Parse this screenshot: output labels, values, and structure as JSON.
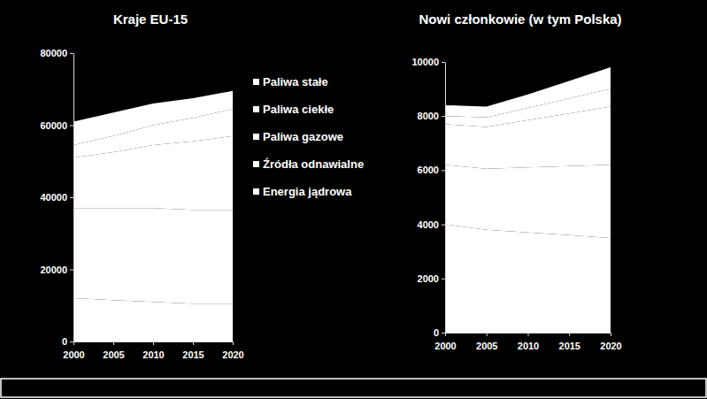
{
  "chart_data": [
    {
      "type": "area",
      "title": "Kraje EU-15",
      "stacked": true,
      "legend": "right",
      "x": [
        2000,
        2005,
        2010,
        2015,
        2020
      ],
      "xlim": [
        2000,
        2020
      ],
      "xticks": [
        2000,
        2005,
        2010,
        2015,
        2020
      ],
      "ylim": [
        0,
        80000
      ],
      "yticks": [
        0,
        20000,
        40000,
        60000,
        80000
      ],
      "series": [
        {
          "name": "Paliwa stałe",
          "color": "#ffffff",
          "values": [
            12000,
            11500,
            11000,
            10500,
            10500
          ]
        },
        {
          "name": "Paliwa ciekłe",
          "color": "#ffffff",
          "values": [
            25000,
            25500,
            26000,
            26000,
            26000
          ]
        },
        {
          "name": "Paliwa gazowe",
          "color": "#ffffff",
          "values": [
            14000,
            15500,
            17500,
            19000,
            20500
          ]
        },
        {
          "name": "Źródła odnawialne",
          "color": "#ffffff",
          "values": [
            3500,
            4500,
            5500,
            6500,
            7500
          ]
        },
        {
          "name": "Energia jądrowa",
          "color": "#ffffff",
          "values": [
            6500,
            6500,
            6000,
            5500,
            5000
          ]
        }
      ]
    },
    {
      "type": "area",
      "title": "Nowi członkowie (w tym Polska)",
      "stacked": true,
      "x": [
        2000,
        2005,
        2010,
        2015,
        2020
      ],
      "xlim": [
        2000,
        2020
      ],
      "xticks": [
        2000,
        2005,
        2010,
        2015,
        2020
      ],
      "ylim": [
        0,
        10000
      ],
      "yticks": [
        0,
        2000,
        4000,
        6000,
        8000,
        10000
      ],
      "series": [
        {
          "color": "#ffffff",
          "values": [
            4000,
            3800,
            3700,
            3600,
            3500
          ]
        },
        {
          "color": "#ffffff",
          "values": [
            2200,
            2250,
            2400,
            2550,
            2700
          ]
        },
        {
          "color": "#ffffff",
          "values": [
            1500,
            1550,
            1750,
            1950,
            2150
          ]
        },
        {
          "color": "#ffffff",
          "values": [
            300,
            350,
            450,
            550,
            650
          ]
        },
        {
          "color": "#ffffff",
          "values": [
            400,
            400,
            500,
            650,
            800
          ]
        }
      ]
    }
  ]
}
